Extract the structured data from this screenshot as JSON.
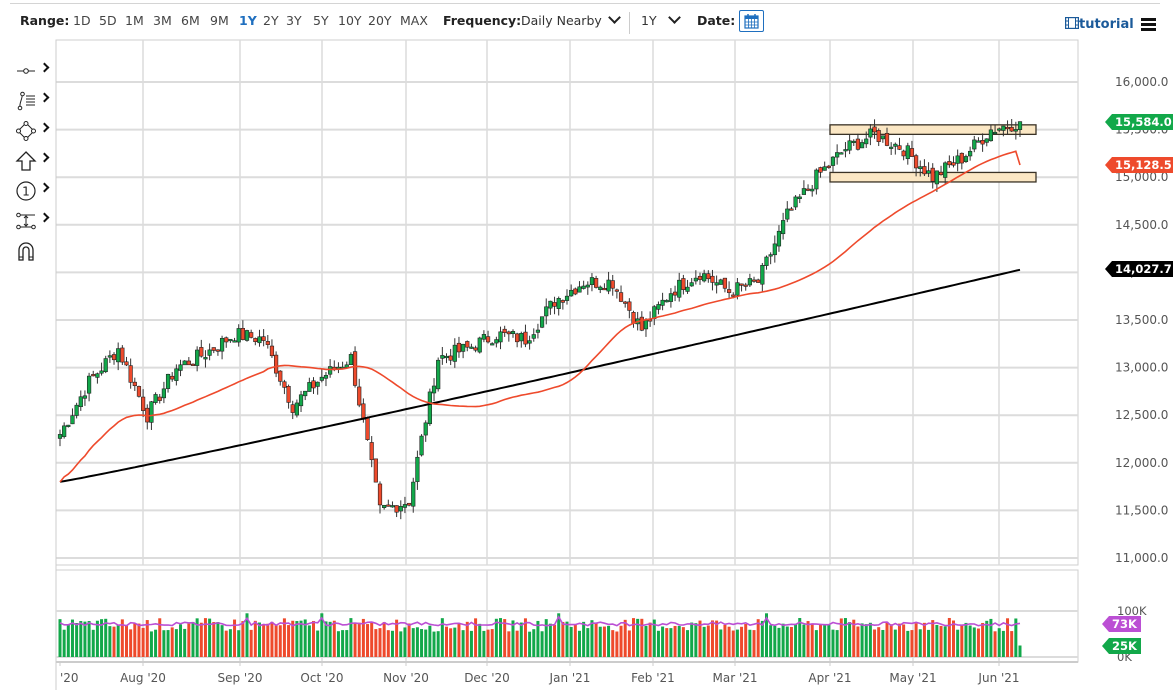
{
  "toolbar": {
    "range_label": "Range:",
    "ranges": [
      "1D",
      "5D",
      "1M",
      "3M",
      "6M",
      "9M",
      "1Y",
      "2Y",
      "3Y",
      "5Y",
      "10Y",
      "20Y",
      "MAX"
    ],
    "active_range": "1Y",
    "frequency_label": "Frequency:",
    "frequency_value": "Daily Nearby",
    "period_value": "1Y",
    "date_label": "Date:",
    "calendar_icon": "calendar-icon",
    "tutorial_label": "tutorial",
    "tutorial_icon": "film-icon",
    "menu_icon": "hamburger-menu-icon"
  },
  "sidebar": {
    "tools": [
      {
        "name": "line-tool",
        "icon": "line-segment-icon"
      },
      {
        "name": "fibonacci-tool",
        "icon": "fib-retracement-icon"
      },
      {
        "name": "shape-tool",
        "icon": "shape-nodes-icon"
      },
      {
        "name": "arrow-tool",
        "icon": "up-arrow-icon"
      },
      {
        "name": "annotation-tool",
        "icon": "numbered-circle-icon"
      },
      {
        "name": "measure-tool",
        "icon": "measure-icon"
      },
      {
        "name": "magnet-tool",
        "icon": "magnet-icon"
      }
    ]
  },
  "colors": {
    "up": "#12a84a",
    "down": "#ee4a2c",
    "ma_fast": "#ee4a2c",
    "ma_slow": "#000000",
    "volume_avg": "#bb4fd4",
    "zone_fill": "#fbe7c4",
    "zone_stroke": "#3a3226",
    "grid": "#dcdcdc"
  },
  "badges": {
    "last_price": {
      "text": "15,584.0",
      "color": "#12a84a"
    },
    "ma_fast": {
      "text": "15,128.5",
      "color": "#ee4a2c"
    },
    "ma_slow": {
      "text": "14,027.7",
      "color": "#000000"
    },
    "volume_avg": {
      "text": "73K",
      "color": "#bb4fd4"
    },
    "volume_last": {
      "text": "25K",
      "color": "#12a84a"
    }
  },
  "chart_data": {
    "type": "candlestick",
    "title": "",
    "instrument_hint": "Daily Nearby futures, 1Y range",
    "xlabel": "",
    "ylabel": "",
    "ylim": [
      11000,
      16000
    ],
    "y_ticks": [
      "16,000.0",
      "15,500.0",
      "15,000.0",
      "14,500.0",
      "14,000.0",
      "13,500.0",
      "13,000.0",
      "12,500.0",
      "12,000.0",
      "11,500.0",
      "11,000.0"
    ],
    "x_ticks": [
      "'20",
      "Aug '20",
      "Sep '20",
      "Oct '20",
      "Nov '20",
      "Dec '20",
      "Jan '21",
      "Feb '21",
      "Mar '21",
      "Apr '21",
      "May '21",
      "Jun '21"
    ],
    "grid": true,
    "legend": "none",
    "overlays": [
      {
        "name": "Moving average (fast, red)",
        "last": 15128.5
      },
      {
        "name": "Moving average (slow, black)",
        "last": 14027.7
      }
    ],
    "zones": [
      {
        "label": "resistance",
        "from": 15450,
        "to": 15550,
        "x_start": "Mar '21 late"
      },
      {
        "label": "support",
        "from": 14950,
        "to": 15050,
        "x_start": "Mar '21 late"
      }
    ],
    "close_path": [
      [
        "Jul '20 start",
        12300
      ],
      [
        "Jul '20 mid",
        12850
      ],
      [
        "Jul '20 end",
        13200
      ],
      [
        "Aug '20 start",
        12500
      ],
      [
        "Aug '20 mid",
        13000
      ],
      [
        "Aug '20 end",
        13150
      ],
      [
        "Sep '20 start",
        13350
      ],
      [
        "Sep '20 mid",
        13300
      ],
      [
        "Sep '20 end",
        12600
      ],
      [
        "Oct '20 start",
        12900
      ],
      [
        "Oct '20 mid",
        13100
      ],
      [
        "Oct '20 end",
        11500
      ],
      [
        "Nov '20 start",
        11600
      ],
      [
        "Nov '20 mid",
        13100
      ],
      [
        "Nov '20 end",
        13200
      ],
      [
        "Dec '20 start",
        13350
      ],
      [
        "Dec '20 mid",
        13300
      ],
      [
        "Dec '20 end",
        13700
      ],
      [
        "Jan '21 start",
        13900
      ],
      [
        "Jan '21 mid",
        13900
      ],
      [
        "Jan '21 end",
        13400
      ],
      [
        "Feb '21 start",
        13800
      ],
      [
        "Feb '21 mid",
        14000
      ],
      [
        "Feb '21 end",
        13800
      ],
      [
        "Mar '21 start",
        13900
      ],
      [
        "Mar '21 mid",
        14600
      ],
      [
        "Mar '21 end",
        15000
      ],
      [
        "Apr '21 start",
        15300
      ],
      [
        "Apr '21 mid",
        15450
      ],
      [
        "Apr '21 end",
        15300
      ],
      [
        "May '21 start",
        15000
      ],
      [
        "May '21 mid",
        15200
      ],
      [
        "May '21 end",
        15500
      ],
      [
        "Jun '21 start",
        15584
      ]
    ],
    "last_close": 15584.0,
    "volume": {
      "ylim": [
        0,
        100000
      ],
      "y_ticks": [
        "100K",
        "0K"
      ],
      "avg_last": 73000,
      "last": 25000
    }
  }
}
